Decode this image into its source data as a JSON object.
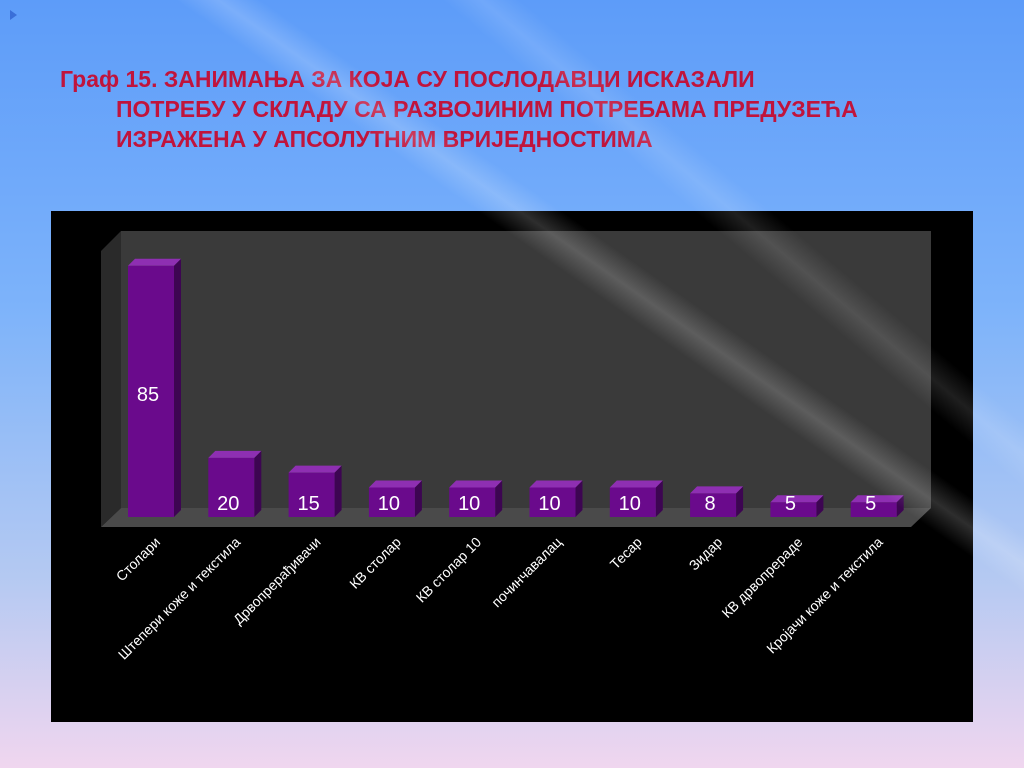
{
  "slide": {
    "title_lines": [
      "Граф 15. ЗАНИМАЊА ЗА КОЈА СУ ПОСЛОДАВЦИ ИСКАЗАЛИ",
      "ПОТРЕБУ У СКЛАДУ СА РАЗВОЈИНИМ ПОТРЕБАМА ПРЕДУЗЕЋА",
      "ИЗРАЖЕНА У АПСОЛУТНИМ ВРИЈЕДНОСТИМА"
    ],
    "colors": {
      "title": "#c0143c",
      "bar_front": "#6a0a8c",
      "bar_top": "#8e2fb2",
      "bar_side": "#3d0552",
      "chart_bg": "#000000",
      "back_wall": "#3a3a3a",
      "label_text": "#ffffff"
    },
    "icons": [
      "nav-arrow-icon"
    ]
  },
  "chart_data": {
    "type": "bar",
    "title": "",
    "xlabel": "",
    "ylabel": "",
    "categories": [
      "Столари",
      "Штепери коже и текстила",
      "Дрвопрерађивачи",
      "КВ столар",
      "КВ столар 10",
      "починчавалац",
      "Тесар",
      "Зидар",
      "КВ дрвопрераде",
      "Кројачи коже и текстила"
    ],
    "values": [
      85,
      20,
      15,
      10,
      10,
      10,
      10,
      8,
      5,
      5
    ],
    "ylim": [
      0,
      90
    ],
    "grid": false,
    "legend": "none",
    "data_labels": true
  }
}
